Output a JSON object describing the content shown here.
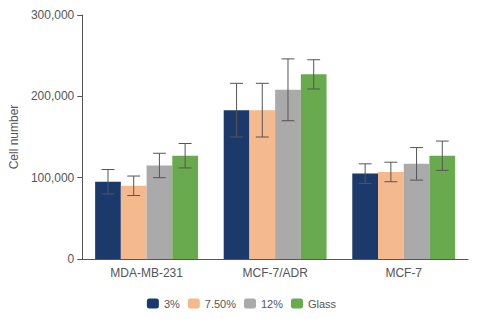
{
  "chart_data": {
    "type": "bar",
    "ylabel": "Cell number",
    "categories": [
      "MDA-MB-231",
      "MCF-7/ADR",
      "MCF-7"
    ],
    "series": [
      {
        "name": "3%",
        "color": "#1b3a6b",
        "values": [
          95000,
          183000,
          105000
        ],
        "errors": [
          15000,
          33000,
          12000
        ]
      },
      {
        "name": "7.50%",
        "color": "#f5b98e",
        "values": [
          90000,
          183000,
          107000
        ],
        "errors": [
          12000,
          33000,
          12000
        ]
      },
      {
        "name": "12%",
        "color": "#aaaaaa",
        "values": [
          115000,
          208000,
          117000
        ],
        "errors": [
          15000,
          38000,
          20000
        ]
      },
      {
        "name": "Glass",
        "color": "#6aaa4e",
        "values": [
          127000,
          227000,
          127000
        ],
        "errors": [
          15000,
          18000,
          18000
        ]
      }
    ],
    "ylim": [
      0,
      300000
    ],
    "yticks": [
      0,
      {
        "value": 100000,
        "label": "100,000"
      },
      {
        "value": 200000,
        "label": "200,000"
      },
      {
        "value": 300000,
        "label": "300,000"
      }
    ],
    "legend": "bottom",
    "grid": false
  }
}
